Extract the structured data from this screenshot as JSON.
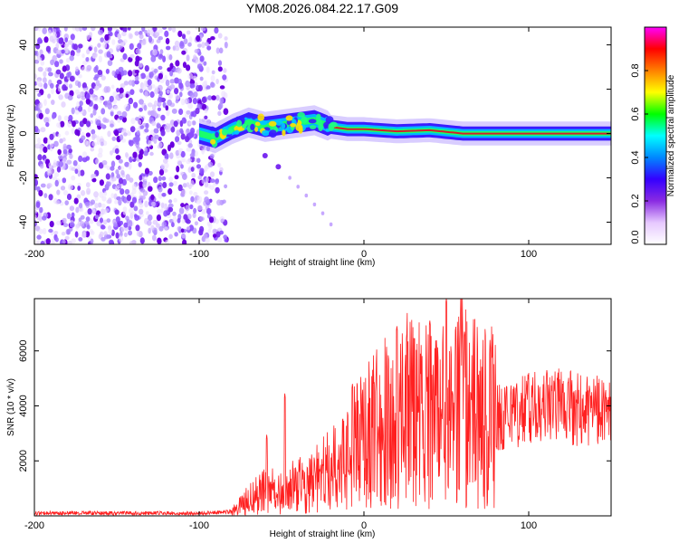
{
  "figure_title": "YM08.2026.084.22.17.G09",
  "colors": {
    "line": "#ff2020",
    "axis": "#000000",
    "core": "#d81e2a",
    "dot_low": "#b89cff",
    "dot_high": "#6a00e0"
  },
  "chart_data": [
    {
      "type": "heatmap",
      "title": "",
      "xlabel": "Height of straight line (km)",
      "ylabel": "Frequency (Hz)",
      "xlim": [
        -200,
        150
      ],
      "ylim": [
        -50,
        48
      ],
      "xticks": [
        -200,
        -100,
        0,
        100
      ],
      "xtick_labels": [
        "-200",
        "-100",
        "0",
        "100"
      ],
      "yticks": [
        -40,
        -20,
        0,
        20,
        40
      ],
      "ytick_labels": [
        "-40",
        "-20",
        "0",
        "20",
        "40"
      ],
      "colorbar": {
        "label": "Normalized spectral amplitude",
        "range": [
          0,
          1
        ],
        "ticks": [
          0,
          0.2,
          0.4,
          0.6,
          0.8
        ],
        "tick_labels": [
          "0.0",
          "0.2",
          "0.4",
          "0.6",
          "0.8"
        ],
        "stops": [
          "#ffffff",
          "#e6c8ff",
          "#8a2be2",
          "#3400ff",
          "#0088ff",
          "#00ffff",
          "#00ff00",
          "#ffff00",
          "#ff8000",
          "#ff0000",
          "#ff00ff"
        ]
      },
      "noise_region_x": [
        -200,
        -83
      ],
      "ridge": {
        "x": [
          -100,
          -90,
          -80,
          -70,
          -60,
          -50,
          -40,
          -30,
          -20,
          -10,
          0,
          20,
          40,
          60,
          80,
          100,
          120,
          150
        ],
        "y": [
          0,
          -2,
          2,
          5,
          3,
          4,
          5,
          6,
          3,
          2,
          2,
          1,
          1.5,
          0,
          0,
          0,
          0,
          0
        ]
      },
      "tail": {
        "x": [
          -60,
          -52,
          -45,
          -40,
          -35,
          -30,
          -25,
          -20
        ],
        "y": [
          -10,
          -15,
          -20,
          -24,
          -28,
          -32,
          -36,
          -41
        ]
      }
    },
    {
      "type": "line",
      "title": "",
      "xlabel": "Height of straight line (km)",
      "ylabel": "SNR (10 * v/v)",
      "xlim": [
        -200,
        150
      ],
      "ylim": [
        0,
        7900
      ],
      "xticks": [
        -200,
        -100,
        0,
        100
      ],
      "xtick_labels": [
        "-200",
        "-100",
        "0",
        "100"
      ],
      "yticks": [
        2000,
        4000,
        6000
      ],
      "ytick_labels": [
        "2000",
        "4000",
        "6000"
      ],
      "envelope": {
        "x": [
          -200,
          -150,
          -100,
          -80,
          -70,
          -60,
          -50,
          -40,
          -30,
          -20,
          -10,
          0,
          10,
          20,
          30,
          40,
          50,
          60,
          70,
          80,
          90,
          100,
          110,
          120,
          130,
          140,
          150
        ],
        "y": [
          100,
          100,
          100,
          150,
          600,
          900,
          900,
          1100,
          1300,
          1700,
          2200,
          2800,
          3200,
          3800,
          3800,
          3500,
          3800,
          4200,
          3800,
          3600,
          3800,
          3900,
          4000,
          4000,
          3900,
          3800,
          3800
        ]
      },
      "peaks": [
        {
          "x": -59,
          "y": 2950
        },
        {
          "x": -48,
          "y": 4450
        },
        {
          "x": -7,
          "y": 4800
        },
        {
          "x": 20,
          "y": 6900
        },
        {
          "x": 26,
          "y": 6600
        },
        {
          "x": 40,
          "y": 7100
        },
        {
          "x": 50,
          "y": 7900
        },
        {
          "x": 61,
          "y": 6700
        },
        {
          "x": 78,
          "y": 5900
        },
        {
          "x": 111,
          "y": 5300
        }
      ]
    }
  ]
}
